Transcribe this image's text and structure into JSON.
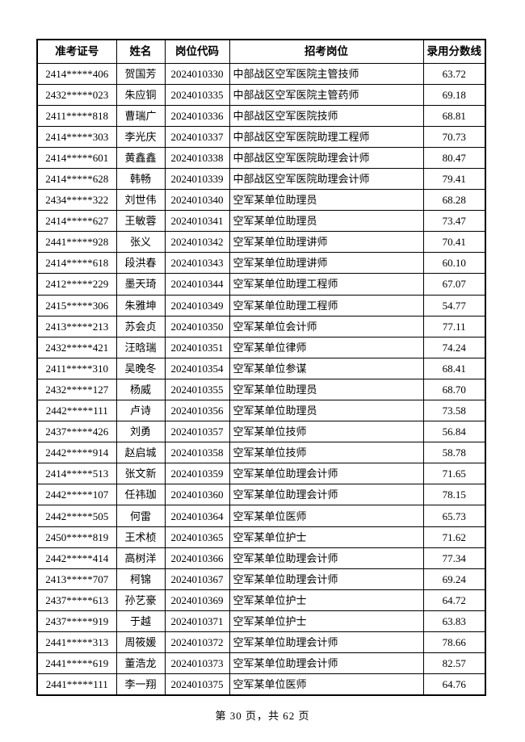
{
  "page": {
    "footer": "第 30 页，共 62 页"
  },
  "table": {
    "headers": [
      "准考证号",
      "姓名",
      "岗位代码",
      "招考岗位",
      "录用分数线"
    ],
    "column_names": [
      "exam-id-cell",
      "name-cell",
      "job-code-cell",
      "job-title-cell",
      "score-cell"
    ],
    "rows": [
      [
        "2414*****406",
        "贺国芳",
        "2024010330",
        "中部战区空军医院主管技师",
        "63.72"
      ],
      [
        "2432*****023",
        "朱应铜",
        "2024010335",
        "中部战区空军医院主管药师",
        "69.18"
      ],
      [
        "2411*****818",
        "曹瑞广",
        "2024010336",
        "中部战区空军医院技师",
        "68.81"
      ],
      [
        "2414*****303",
        "李光庆",
        "2024010337",
        "中部战区空军医院助理工程师",
        "70.73"
      ],
      [
        "2414*****601",
        "黄鑫鑫",
        "2024010338",
        "中部战区空军医院助理会计师",
        "80.47"
      ],
      [
        "2414*****628",
        "韩畅",
        "2024010339",
        "中部战区空军医院助理会计师",
        "79.41"
      ],
      [
        "2434*****322",
        "刘世伟",
        "2024010340",
        "空军某单位助理员",
        "68.28"
      ],
      [
        "2414*****627",
        "王敏蓉",
        "2024010341",
        "空军某单位助理员",
        "73.47"
      ],
      [
        "2441*****928",
        "张义",
        "2024010342",
        "空军某单位助理讲师",
        "70.41"
      ],
      [
        "2414*****618",
        "段洪春",
        "2024010343",
        "空军某单位助理讲师",
        "60.10"
      ],
      [
        "2412*****229",
        "墨天琦",
        "2024010344",
        "空军某单位助理工程师",
        "67.07"
      ],
      [
        "2415*****306",
        "朱雅坤",
        "2024010349",
        "空军某单位助理工程师",
        "54.77"
      ],
      [
        "2413*****213",
        "苏会贞",
        "2024010350",
        "空军某单位会计师",
        "77.11"
      ],
      [
        "2432*****421",
        "汪晗瑞",
        "2024010351",
        "空军某单位律师",
        "74.24"
      ],
      [
        "2411*****310",
        "吴晚冬",
        "2024010354",
        "空军某单位参谋",
        "68.41"
      ],
      [
        "2432*****127",
        "杨威",
        "2024010355",
        "空军某单位助理员",
        "68.70"
      ],
      [
        "2442*****111",
        "卢诗",
        "2024010356",
        "空军某单位助理员",
        "73.58"
      ],
      [
        "2437*****426",
        "刘勇",
        "2024010357",
        "空军某单位技师",
        "56.84"
      ],
      [
        "2442*****914",
        "赵启城",
        "2024010358",
        "空军某单位技师",
        "58.78"
      ],
      [
        "2414*****513",
        "张文新",
        "2024010359",
        "空军某单位助理会计师",
        "71.65"
      ],
      [
        "2442*****107",
        "任祎珈",
        "2024010360",
        "空军某单位助理会计师",
        "78.15"
      ],
      [
        "2442*****505",
        "何雷",
        "2024010364",
        "空军某单位医师",
        "65.73"
      ],
      [
        "2450*****819",
        "王术桢",
        "2024010365",
        "空军某单位护士",
        "71.62"
      ],
      [
        "2442*****414",
        "高树洋",
        "2024010366",
        "空军某单位助理会计师",
        "77.34"
      ],
      [
        "2413*****707",
        "柯锦",
        "2024010367",
        "空军某单位助理会计师",
        "69.24"
      ],
      [
        "2437*****613",
        "孙艺豪",
        "2024010369",
        "空军某单位护士",
        "64.72"
      ],
      [
        "2437*****919",
        "于越",
        "2024010371",
        "空军某单位护士",
        "63.83"
      ],
      [
        "2441*****313",
        "周筱媛",
        "2024010372",
        "空军某单位助理会计师",
        "78.66"
      ],
      [
        "2441*****619",
        "董浩龙",
        "2024010373",
        "空军某单位助理会计师",
        "82.57"
      ],
      [
        "2441*****111",
        "李一翔",
        "2024010375",
        "空军某单位医师",
        "64.76"
      ]
    ]
  }
}
